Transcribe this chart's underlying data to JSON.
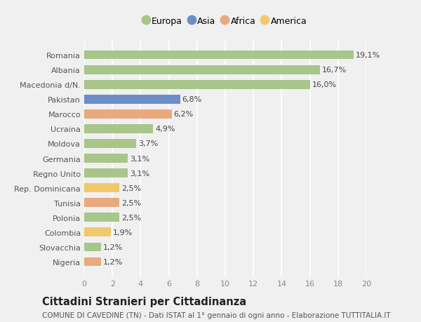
{
  "categories": [
    "Nigeria",
    "Slovacchia",
    "Colombia",
    "Polonia",
    "Tunisia",
    "Rep. Dominicana",
    "Regno Unito",
    "Germania",
    "Moldova",
    "Ucraina",
    "Marocco",
    "Pakistan",
    "Macedonia d/N.",
    "Albania",
    "Romania"
  ],
  "values": [
    1.2,
    1.2,
    1.9,
    2.5,
    2.5,
    2.5,
    3.1,
    3.1,
    3.7,
    4.9,
    6.2,
    6.8,
    16.0,
    16.7,
    19.1
  ],
  "labels": [
    "1,2%",
    "1,2%",
    "1,9%",
    "2,5%",
    "2,5%",
    "2,5%",
    "3,1%",
    "3,1%",
    "3,7%",
    "4,9%",
    "6,2%",
    "6,8%",
    "16,0%",
    "16,7%",
    "19,1%"
  ],
  "colors": [
    "#e8a97e",
    "#a8c58a",
    "#f0c96a",
    "#a8c58a",
    "#e8a97e",
    "#f0c96a",
    "#a8c58a",
    "#a8c58a",
    "#a8c58a",
    "#a8c58a",
    "#e8a97e",
    "#6b8ec9",
    "#a8c58a",
    "#a8c58a",
    "#a8c58a"
  ],
  "legend_labels": [
    "Europa",
    "Asia",
    "Africa",
    "America"
  ],
  "legend_colors": [
    "#a8c58a",
    "#6b8ec9",
    "#e8a97e",
    "#f0c96a"
  ],
  "xlim": [
    0,
    20
  ],
  "xticks": [
    0,
    2,
    4,
    6,
    8,
    10,
    12,
    14,
    16,
    18,
    20
  ],
  "title": "Cittadini Stranieri per Cittadinanza",
  "subtitle": "COMUNE DI CAVEDINE (TN) - Dati ISTAT al 1° gennaio di ogni anno - Elaborazione TUTTITALIA.IT",
  "background_color": "#f0f0f0",
  "bar_height": 0.6,
  "grid_color": "#ffffff",
  "label_fontsize": 8,
  "tick_fontsize": 8,
  "ytick_fontsize": 8,
  "title_fontsize": 10.5,
  "subtitle_fontsize": 7.5
}
